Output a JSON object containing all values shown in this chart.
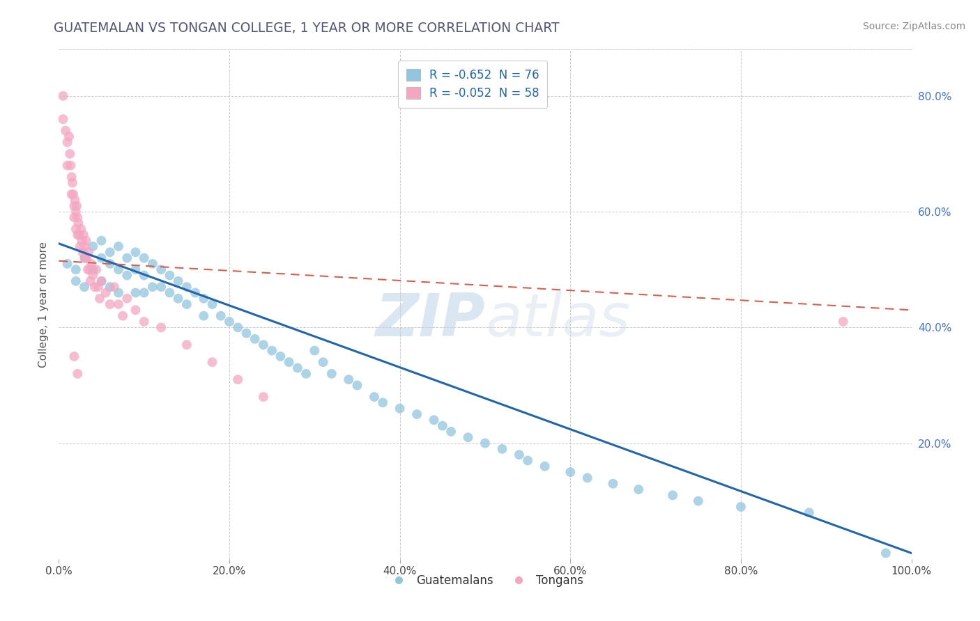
{
  "title": "GUATEMALAN VS TONGAN COLLEGE, 1 YEAR OR MORE CORRELATION CHART",
  "source": "Source: ZipAtlas.com",
  "ylabel": "College, 1 year or more",
  "xlim": [
    0.0,
    1.0
  ],
  "ylim": [
    0.0,
    0.88
  ],
  "xticks": [
    0.0,
    0.2,
    0.4,
    0.6,
    0.8,
    1.0
  ],
  "xtick_labels": [
    "0.0%",
    "20.0%",
    "40.0%",
    "60.0%",
    "80.0%",
    "100.0%"
  ],
  "ytick_right_vals": [
    0.2,
    0.4,
    0.6,
    0.8
  ],
  "ytick_right_labels": [
    "20.0%",
    "40.0%",
    "60.0%",
    "80.0%"
  ],
  "legend_blue_text": "R = -0.652  N = 76",
  "legend_pink_text": "R = -0.052  N = 58",
  "blue_color": "#92c5de",
  "pink_color": "#f4a6c0",
  "blue_line_color": "#2166ac",
  "pink_line_color": "#d6604d",
  "watermark": "ZIPatlas",
  "guatemalan_x": [
    0.01,
    0.02,
    0.02,
    0.03,
    0.03,
    0.04,
    0.04,
    0.05,
    0.05,
    0.05,
    0.06,
    0.06,
    0.06,
    0.07,
    0.07,
    0.07,
    0.08,
    0.08,
    0.09,
    0.09,
    0.09,
    0.1,
    0.1,
    0.1,
    0.11,
    0.11,
    0.12,
    0.12,
    0.13,
    0.13,
    0.14,
    0.14,
    0.15,
    0.15,
    0.16,
    0.17,
    0.17,
    0.18,
    0.19,
    0.2,
    0.21,
    0.22,
    0.23,
    0.24,
    0.25,
    0.26,
    0.27,
    0.28,
    0.29,
    0.3,
    0.31,
    0.32,
    0.34,
    0.35,
    0.37,
    0.38,
    0.4,
    0.42,
    0.44,
    0.45,
    0.46,
    0.48,
    0.5,
    0.52,
    0.54,
    0.55,
    0.57,
    0.6,
    0.62,
    0.65,
    0.68,
    0.72,
    0.75,
    0.8,
    0.88,
    0.97
  ],
  "guatemalan_y": [
    0.51,
    0.5,
    0.48,
    0.52,
    0.47,
    0.54,
    0.5,
    0.55,
    0.52,
    0.48,
    0.53,
    0.51,
    0.47,
    0.54,
    0.5,
    0.46,
    0.52,
    0.49,
    0.53,
    0.5,
    0.46,
    0.52,
    0.49,
    0.46,
    0.51,
    0.47,
    0.5,
    0.47,
    0.49,
    0.46,
    0.48,
    0.45,
    0.47,
    0.44,
    0.46,
    0.45,
    0.42,
    0.44,
    0.42,
    0.41,
    0.4,
    0.39,
    0.38,
    0.37,
    0.36,
    0.35,
    0.34,
    0.33,
    0.32,
    0.36,
    0.34,
    0.32,
    0.31,
    0.3,
    0.28,
    0.27,
    0.26,
    0.25,
    0.24,
    0.23,
    0.22,
    0.21,
    0.2,
    0.19,
    0.18,
    0.17,
    0.16,
    0.15,
    0.14,
    0.13,
    0.12,
    0.11,
    0.1,
    0.09,
    0.08,
    0.01
  ],
  "tongan_x": [
    0.005,
    0.005,
    0.008,
    0.01,
    0.01,
    0.012,
    0.013,
    0.014,
    0.015,
    0.015,
    0.016,
    0.017,
    0.018,
    0.018,
    0.019,
    0.02,
    0.02,
    0.021,
    0.022,
    0.022,
    0.023,
    0.024,
    0.025,
    0.026,
    0.027,
    0.028,
    0.029,
    0.03,
    0.031,
    0.032,
    0.033,
    0.034,
    0.035,
    0.036,
    0.037,
    0.038,
    0.04,
    0.042,
    0.044,
    0.046,
    0.048,
    0.05,
    0.055,
    0.06,
    0.065,
    0.07,
    0.075,
    0.08,
    0.09,
    0.1,
    0.018,
    0.022,
    0.12,
    0.15,
    0.18,
    0.21,
    0.24,
    0.92
  ],
  "tongan_y": [
    0.8,
    0.76,
    0.74,
    0.72,
    0.68,
    0.73,
    0.7,
    0.68,
    0.66,
    0.63,
    0.65,
    0.63,
    0.61,
    0.59,
    0.62,
    0.6,
    0.57,
    0.61,
    0.59,
    0.56,
    0.58,
    0.56,
    0.54,
    0.57,
    0.55,
    0.53,
    0.56,
    0.54,
    0.52,
    0.55,
    0.52,
    0.5,
    0.53,
    0.5,
    0.48,
    0.51,
    0.49,
    0.47,
    0.5,
    0.47,
    0.45,
    0.48,
    0.46,
    0.44,
    0.47,
    0.44,
    0.42,
    0.45,
    0.43,
    0.41,
    0.35,
    0.32,
    0.4,
    0.37,
    0.34,
    0.31,
    0.28,
    0.41
  ],
  "blue_trendline_x": [
    0.0,
    1.0
  ],
  "blue_trendline_y": [
    0.545,
    0.01
  ],
  "pink_trendline_x": [
    0.0,
    1.0
  ],
  "pink_trendline_y": [
    0.515,
    0.43
  ]
}
